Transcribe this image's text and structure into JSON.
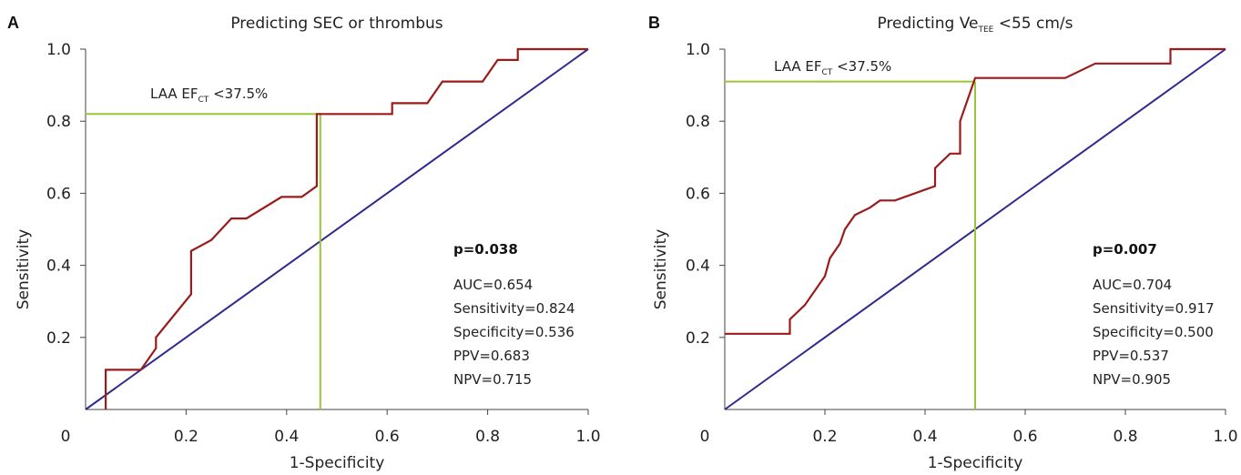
{
  "chart_data": [
    {
      "type": "line",
      "panel_letter": "A",
      "title": "Predicting SEC or thrombus",
      "xlabel": "1-Specificity",
      "ylabel": "Sensitivity",
      "xlim": [
        0,
        1
      ],
      "ylim": [
        0,
        1
      ],
      "x_ticks": [
        "0",
        "0.2",
        "0.4",
        "0.6",
        "0.8",
        "1.0"
      ],
      "y_ticks": [
        "0.2",
        "0.4",
        "0.6",
        "0.8",
        "1.0"
      ],
      "grid": false,
      "colors": {
        "roc": "#9b1b1b",
        "reference": "#2e2a8f",
        "cutoff": "#9cc43a"
      },
      "series": [
        {
          "x": [
            0.04,
            0.04,
            0.11,
            0.14,
            0.14,
            0.21,
            0.21,
            0.25,
            0.29,
            0.32,
            0.39,
            0.43,
            0.46,
            0.46,
            0.61,
            0.61,
            0.68,
            0.71,
            0.79,
            0.82,
            0.86,
            0.86,
            1.0
          ],
          "y": [
            0.0,
            0.11,
            0.11,
            0.17,
            0.2,
            0.32,
            0.44,
            0.47,
            0.53,
            0.53,
            0.59,
            0.59,
            0.62,
            0.82,
            0.82,
            0.85,
            0.85,
            0.91,
            0.91,
            0.97,
            0.97,
            1.0,
            1.0
          ]
        }
      ],
      "reference_line": {
        "x": [
          0,
          1
        ],
        "y": [
          0,
          1
        ]
      },
      "cutoff": {
        "label_main": "LAA EF",
        "label_sub": "CT",
        "label_tail": " <37.5%",
        "x": 0.467,
        "y": 0.82
      },
      "annotation": {
        "p": "p=0.038",
        "stats": [
          "AUC=0.654",
          "Sensitivity=0.824",
          "Specificity=0.536",
          "PPV=0.683",
          "NPV=0.715"
        ]
      }
    },
    {
      "type": "line",
      "panel_letter": "B",
      "title_main": "Predicting Ve",
      "title_sub": "TEE",
      "title_tail": " <55 cm/s",
      "xlabel": "1-Specificity",
      "ylabel": "Sensitivity",
      "xlim": [
        0,
        1
      ],
      "ylim": [
        0,
        1
      ],
      "x_ticks": [
        "0",
        "0.2",
        "0.4",
        "0.6",
        "0.8",
        "1.0"
      ],
      "y_ticks": [
        "0.2",
        "0.4",
        "0.6",
        "0.8",
        "1.0"
      ],
      "grid": false,
      "colors": {
        "roc": "#9b1b1b",
        "reference": "#2e2a8f",
        "cutoff": "#9cc43a"
      },
      "series": [
        {
          "x": [
            0.0,
            0.13,
            0.13,
            0.16,
            0.2,
            0.21,
            0.23,
            0.24,
            0.26,
            0.29,
            0.31,
            0.34,
            0.42,
            0.42,
            0.45,
            0.47,
            0.47,
            0.5,
            0.68,
            0.74,
            0.89,
            0.89,
            1.0
          ],
          "y": [
            0.21,
            0.21,
            0.25,
            0.29,
            0.37,
            0.42,
            0.46,
            0.5,
            0.54,
            0.56,
            0.58,
            0.58,
            0.62,
            0.67,
            0.71,
            0.71,
            0.8,
            0.92,
            0.92,
            0.96,
            0.96,
            1.0,
            1.0
          ]
        }
      ],
      "reference_line": {
        "x": [
          0,
          1
        ],
        "y": [
          0,
          1
        ]
      },
      "cutoff": {
        "label_main": "LAA EF",
        "label_sub": "CT",
        "label_tail": " <37.5%",
        "x": 0.5,
        "y": 0.91
      },
      "annotation": {
        "p": "p=0.007",
        "stats": [
          "AUC=0.704",
          "Sensitivity=0.917",
          "Specificity=0.500",
          "PPV=0.537",
          "NPV=0.905"
        ]
      }
    }
  ]
}
